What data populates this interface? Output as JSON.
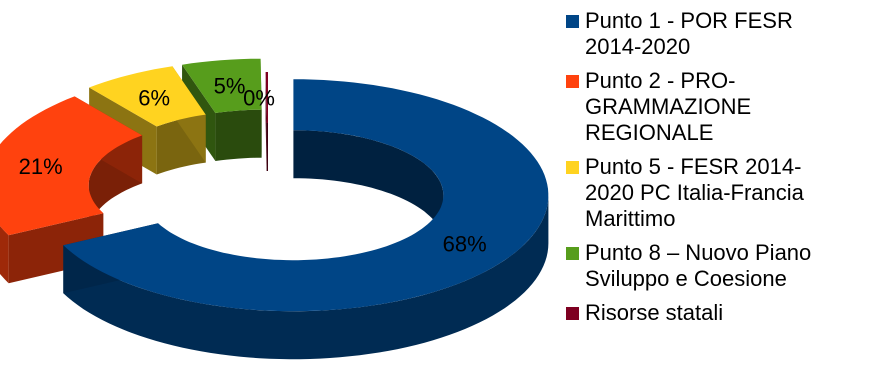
{
  "chart_data": {
    "type": "pie",
    "style": "3d-donut-exploded",
    "title": "",
    "slices": [
      {
        "label": "Punto 1 - POR FESR\n2014-2020",
        "value": 68,
        "display": "68%",
        "color": "#004586"
      },
      {
        "label": "Punto 2 - PRO-\nGRAMMAZIONE\nREGIONALE",
        "value": 21,
        "display": "21%",
        "color": "#ff420e"
      },
      {
        "label": "Punto 5 - FESR 2014-\n2020 PC Italia-Francia\nMarittimo",
        "value": 6,
        "display": "6%",
        "color": "#ffd320"
      },
      {
        "label": "Punto 8 – Nuovo Piano\nSviluppo e Coesione",
        "value": 5,
        "display": "5%",
        "color": "#579d1c"
      },
      {
        "label": "Risorse statali",
        "value": 0.15,
        "display": "0%",
        "color": "#7e0021"
      }
    ],
    "legend_position": "right"
  }
}
